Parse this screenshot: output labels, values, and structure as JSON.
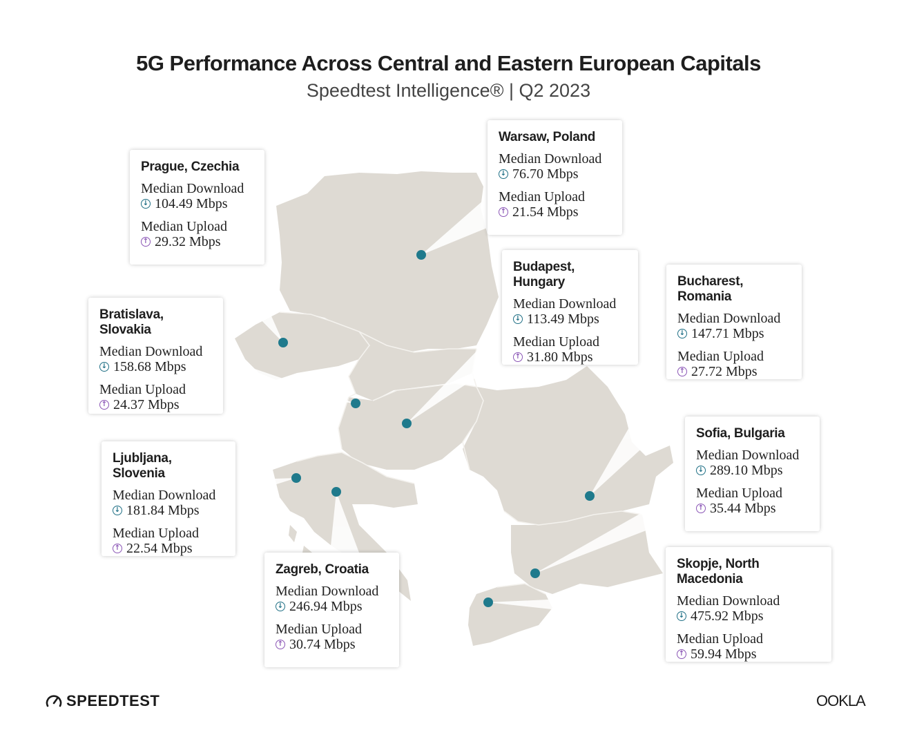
{
  "title": "5G Performance Across Central and Eastern European Capitals",
  "subtitle": "Speedtest Intelligence® | Q2 2023",
  "download_label": "Median Download",
  "upload_label": "Median Upload",
  "colors": {
    "marker": "#1f7a8c",
    "download_icon": "#1f6f85",
    "upload_icon": "#8a55b5",
    "land": "#dedad3",
    "border_lines": "#f4f2ee"
  },
  "icons": {
    "download": "arrow-down-circle-icon",
    "upload": "arrow-up-circle-icon"
  },
  "cities": [
    {
      "id": "prague",
      "name": "Prague, Czechia",
      "download": "104.49 Mbps",
      "upload": "29.32 Mbps"
    },
    {
      "id": "warsaw",
      "name": "Warsaw, Poland",
      "download": "76.70 Mbps",
      "upload": "21.54 Mbps"
    },
    {
      "id": "budapest",
      "name": "Budapest, Hungary",
      "download": "113.49 Mbps",
      "upload": "31.80 Mbps"
    },
    {
      "id": "bucharest",
      "name": "Bucharest, Romania",
      "download": "147.71 Mbps",
      "upload": "27.72 Mbps"
    },
    {
      "id": "bratislava",
      "name": "Bratislava, Slovakia",
      "download": "158.68 Mbps",
      "upload": "24.37 Mbps"
    },
    {
      "id": "ljubljana",
      "name": "Ljubljana, Slovenia",
      "download": "181.84 Mbps",
      "upload": "22.54 Mbps"
    },
    {
      "id": "zagreb",
      "name": "Zagreb, Croatia",
      "download": "246.94 Mbps",
      "upload": "30.74 Mbps"
    },
    {
      "id": "sofia",
      "name": "Sofia, Bulgaria",
      "download": "289.10 Mbps",
      "upload": "35.44 Mbps"
    },
    {
      "id": "skopje",
      "name": "Skopje, North Macedonia",
      "download": "475.92 Mbps",
      "upload": "59.94 Mbps"
    }
  ],
  "logos": {
    "left": "SPEEDTEST",
    "right": "OOKLA"
  }
}
